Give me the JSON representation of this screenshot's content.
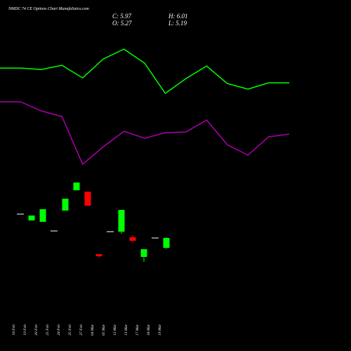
{
  "chart_data": [
    {
      "type": "candlestick",
      "title": "NMDC 74 CE Options Chart MunafaSutra.com",
      "annotations": [
        "C: 5.97",
        "H: 6.01",
        "O: 5.27",
        "L: 5.19"
      ],
      "categories": [
        "18 Feb",
        "19 Feb",
        "20 Feb",
        "21 Feb",
        "24 Feb",
        "25 Feb",
        "27 Feb",
        "04 Mar",
        "05 Mar",
        "12 Mar",
        "13 Mar",
        "17 Mar",
        "18 Mar",
        "19 Mar"
      ],
      "open": [
        7.67,
        7.22,
        7.12,
        6.47,
        7.92,
        9.37,
        9.27,
        4.82,
        6.42,
        6.42,
        6.02,
        4.62,
        5.97,
        5.27
      ],
      "high": [
        7.67,
        7.57,
        8.02,
        6.47,
        8.77,
        9.92,
        9.27,
        4.82,
        6.42,
        7.97,
        6.17,
        5.17,
        5.97,
        6.01
      ],
      "low": [
        7.67,
        7.22,
        7.12,
        6.47,
        7.92,
        9.37,
        8.27,
        4.57,
        6.42,
        6.27,
        5.62,
        4.27,
        5.97,
        5.19
      ],
      "close": [
        7.67,
        7.57,
        8.02,
        6.47,
        8.77,
        9.92,
        8.27,
        4.67,
        6.42,
        7.97,
        5.77,
        5.17,
        5.97,
        5.97
      ],
      "up_color": "#00ff00",
      "down_color": "#ff0000",
      "flat_color": "#ffffff",
      "ylim": [
        3.92,
        10.42
      ]
    },
    {
      "type": "line",
      "series": [
        {
          "color": "#00ff00",
          "values": [
            153,
            153,
            151,
            157,
            139,
            166,
            180,
            160,
            117,
            138,
            156,
            131,
            123,
            132,
            132
          ]
        },
        {
          "color": "#aa00aa",
          "values": [
            105,
            105,
            92,
            84,
            16,
            41,
            63,
            53,
            61,
            62,
            79,
            44,
            29,
            55,
            59
          ]
        }
      ],
      "ylim": [
        0,
        250
      ]
    }
  ]
}
